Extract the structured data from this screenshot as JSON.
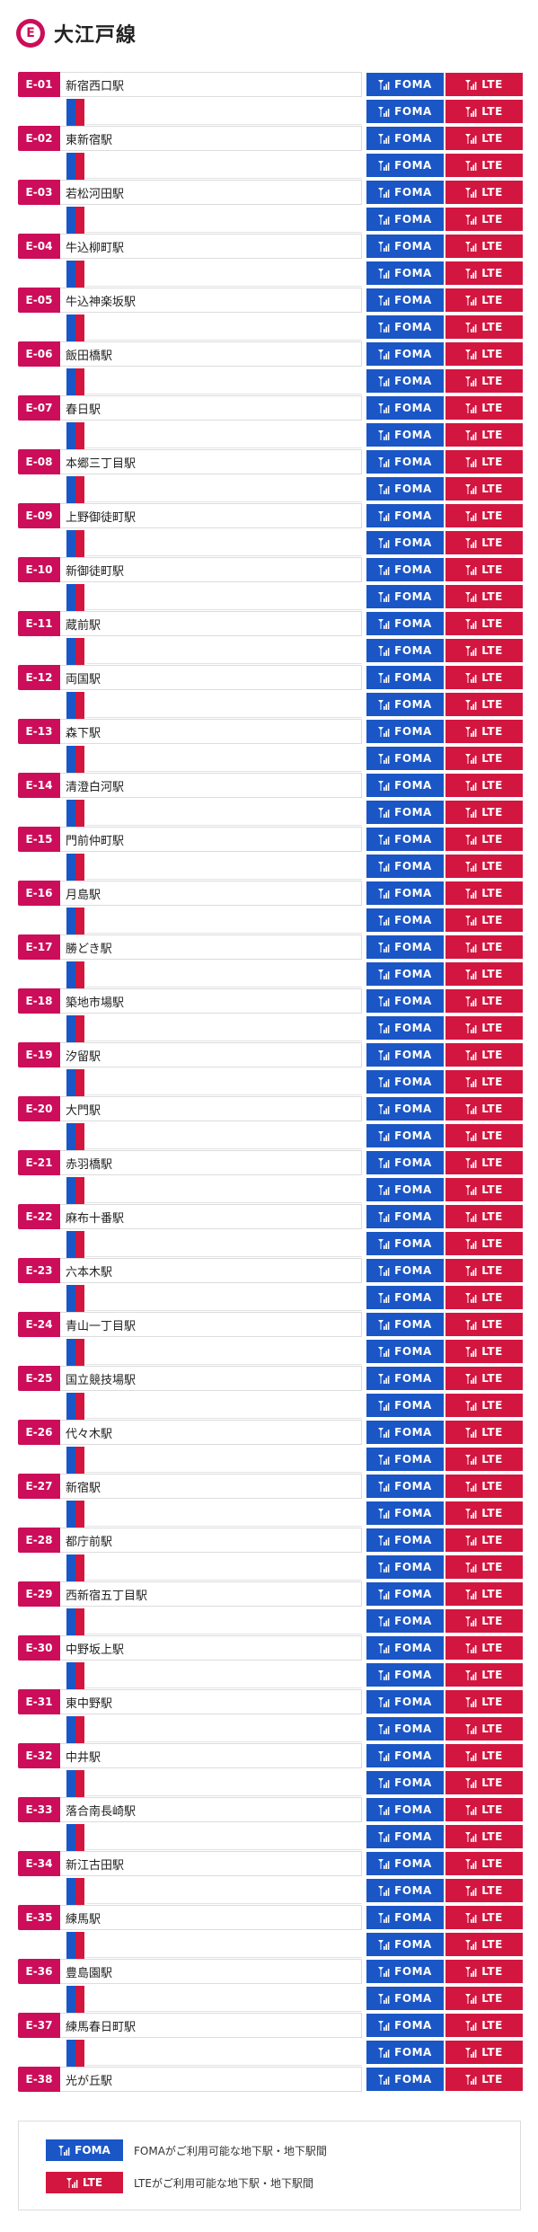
{
  "header": {
    "badge_letter": "E",
    "title": "大江戸線"
  },
  "tags": {
    "foma": "FOMA",
    "lte": "LTE"
  },
  "colors": {
    "line": "#cc0d5a",
    "foma": "#1a56c6",
    "lte": "#d3163f"
  },
  "icons": {
    "signal": "signal-antenna-icon"
  },
  "stations": [
    {
      "code": "E-01",
      "name": "新宿西口駅"
    },
    {
      "code": "E-02",
      "name": "東新宿駅"
    },
    {
      "code": "E-03",
      "name": "若松河田駅"
    },
    {
      "code": "E-04",
      "name": "牛込柳町駅"
    },
    {
      "code": "E-05",
      "name": "牛込神楽坂駅"
    },
    {
      "code": "E-06",
      "name": "飯田橋駅"
    },
    {
      "code": "E-07",
      "name": "春日駅"
    },
    {
      "code": "E-08",
      "name": "本郷三丁目駅"
    },
    {
      "code": "E-09",
      "name": "上野御徒町駅"
    },
    {
      "code": "E-10",
      "name": "新御徒町駅"
    },
    {
      "code": "E-11",
      "name": "蔵前駅"
    },
    {
      "code": "E-12",
      "name": "両国駅"
    },
    {
      "code": "E-13",
      "name": "森下駅"
    },
    {
      "code": "E-14",
      "name": "清澄白河駅"
    },
    {
      "code": "E-15",
      "name": "門前仲町駅"
    },
    {
      "code": "E-16",
      "name": "月島駅"
    },
    {
      "code": "E-17",
      "name": "勝どき駅"
    },
    {
      "code": "E-18",
      "name": "築地市場駅"
    },
    {
      "code": "E-19",
      "name": "汐留駅"
    },
    {
      "code": "E-20",
      "name": "大門駅"
    },
    {
      "code": "E-21",
      "name": "赤羽橋駅"
    },
    {
      "code": "E-22",
      "name": "麻布十番駅"
    },
    {
      "code": "E-23",
      "name": "六本木駅"
    },
    {
      "code": "E-24",
      "name": "青山一丁目駅"
    },
    {
      "code": "E-25",
      "name": "国立競技場駅"
    },
    {
      "code": "E-26",
      "name": "代々木駅"
    },
    {
      "code": "E-27",
      "name": "新宿駅"
    },
    {
      "code": "E-28",
      "name": "都庁前駅"
    },
    {
      "code": "E-29",
      "name": "西新宿五丁目駅"
    },
    {
      "code": "E-30",
      "name": "中野坂上駅"
    },
    {
      "code": "E-31",
      "name": "東中野駅"
    },
    {
      "code": "E-32",
      "name": "中井駅"
    },
    {
      "code": "E-33",
      "name": "落合南長崎駅"
    },
    {
      "code": "E-34",
      "name": "新江古田駅"
    },
    {
      "code": "E-35",
      "name": "練馬駅"
    },
    {
      "code": "E-36",
      "name": "豊島園駅"
    },
    {
      "code": "E-37",
      "name": "練馬春日町駅"
    },
    {
      "code": "E-38",
      "name": "光が丘駅"
    }
  ],
  "legend": {
    "foma_label": "FOMA",
    "foma_text": "FOMAがご利用可能な地下駅・地下駅間",
    "lte_label": "LTE",
    "lte_text": "LTEがご利用可能な地下駅・地下駅間"
  }
}
